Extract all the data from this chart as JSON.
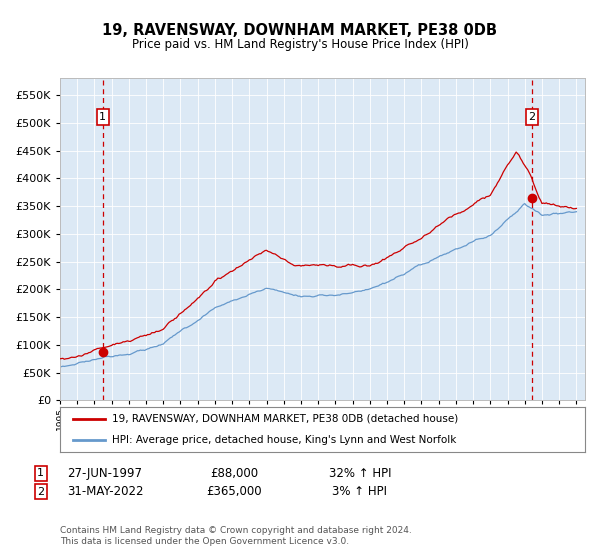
{
  "title": "19, RAVENSWAY, DOWNHAM MARKET, PE38 0DB",
  "subtitle": "Price paid vs. HM Land Registry's House Price Index (HPI)",
  "ytick_values": [
    0,
    50000,
    100000,
    150000,
    200000,
    250000,
    300000,
    350000,
    400000,
    450000,
    500000,
    550000
  ],
  "xmin": 1995.0,
  "xmax": 2025.5,
  "ymin": 0,
  "ymax": 580000,
  "bg_color": "#dce9f5",
  "sale1_date": 1997.487,
  "sale1_price": 88000,
  "sale2_date": 2022.413,
  "sale2_price": 365000,
  "red_line_color": "#cc0000",
  "blue_line_color": "#6699cc",
  "marker_color": "#cc0000",
  "dashed_vline_color": "#cc0000",
  "legend_line1": "19, RAVENSWAY, DOWNHAM MARKET, PE38 0DB (detached house)",
  "legend_line2": "HPI: Average price, detached house, King's Lynn and West Norfolk",
  "footnote": "Contains HM Land Registry data © Crown copyright and database right 2024.\nThis data is licensed under the Open Government Licence v3.0.",
  "table_row1_num": "1",
  "table_row1_date": "27-JUN-1997",
  "table_row1_price": "£88,000",
  "table_row1_hpi": "32% ↑ HPI",
  "table_row2_num": "2",
  "table_row2_date": "31-MAY-2022",
  "table_row2_price": "£365,000",
  "table_row2_hpi": "3% ↑ HPI"
}
